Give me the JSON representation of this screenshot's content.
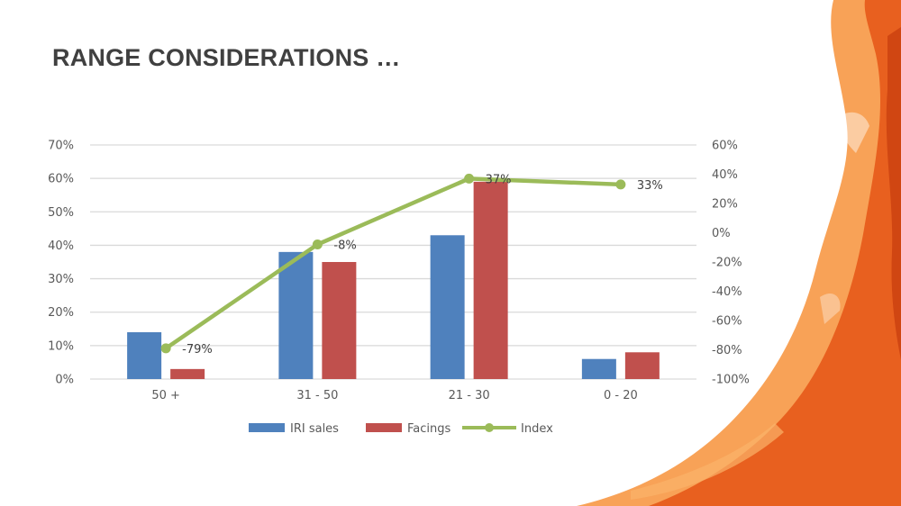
{
  "slide": {
    "title": "RANGE CONSIDERATIONS …"
  },
  "colors": {
    "iri_sales": "#4f81bd",
    "facings": "#c0504d",
    "index": "#9bbb59",
    "grid": "#d9d9d9",
    "brush_dark": "#e0501a",
    "brush_light": "#f7923a"
  },
  "decor": {
    "brush_icon": "paint-brush-stroke-icon"
  },
  "chart_data": {
    "type": "bar",
    "categories": [
      "50 +",
      "31 - 50",
      "21 - 30",
      "0 - 20"
    ],
    "series": [
      {
        "name": "IRI sales",
        "type": "bar",
        "axis": "left",
        "values": [
          0.14,
          0.38,
          0.43,
          0.06
        ]
      },
      {
        "name": "Facings",
        "type": "bar",
        "axis": "left",
        "values": [
          0.03,
          0.35,
          0.59,
          0.08
        ]
      },
      {
        "name": "Index",
        "type": "line",
        "axis": "right",
        "values": [
          -0.79,
          -0.08,
          0.37,
          0.33
        ],
        "labels": [
          "-79%",
          "-8%",
          "37%",
          "33%"
        ]
      }
    ],
    "y_left": {
      "ylim": [
        0,
        0.7
      ],
      "ticks": [
        0,
        0.1,
        0.2,
        0.3,
        0.4,
        0.5,
        0.6,
        0.7
      ],
      "tick_labels": [
        "0%",
        "10%",
        "20%",
        "30%",
        "40%",
        "50%",
        "60%",
        "70%"
      ]
    },
    "y_right": {
      "ylim": [
        -1,
        0.6
      ],
      "ticks": [
        -1,
        -0.8,
        -0.6,
        -0.4,
        -0.2,
        0,
        0.2,
        0.4,
        0.6
      ],
      "tick_labels": [
        "-100%",
        "-80%",
        "-60%",
        "-40%",
        "-20%",
        "0%",
        "20%",
        "40%",
        "60%"
      ]
    },
    "grid": true,
    "legend": "bottom"
  }
}
